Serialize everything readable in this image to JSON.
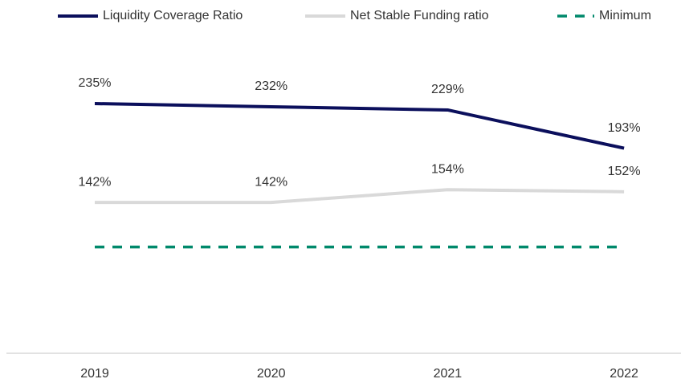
{
  "chart_data": {
    "type": "line",
    "categories": [
      "2019",
      "2020",
      "2021",
      "2022"
    ],
    "series": [
      {
        "name": "Liquidity Coverage Ratio",
        "color": "#0b0f5c",
        "values": [
          235,
          232,
          229,
          193
        ],
        "value_labels": [
          "235%",
          "232%",
          "229%",
          "193%"
        ]
      },
      {
        "name": "Net Stable Funding ratio",
        "color": "#d9d9d9",
        "values": [
          142,
          142,
          154,
          152
        ],
        "value_labels": [
          "142%",
          "142%",
          "154%",
          "152%"
        ]
      },
      {
        "name": "Minimum",
        "color": "#00896b",
        "dashed": true,
        "values": [
          100,
          100,
          100,
          100
        ]
      }
    ],
    "ylim": [
      0,
      300
    ],
    "grid": false,
    "legend": "top"
  }
}
